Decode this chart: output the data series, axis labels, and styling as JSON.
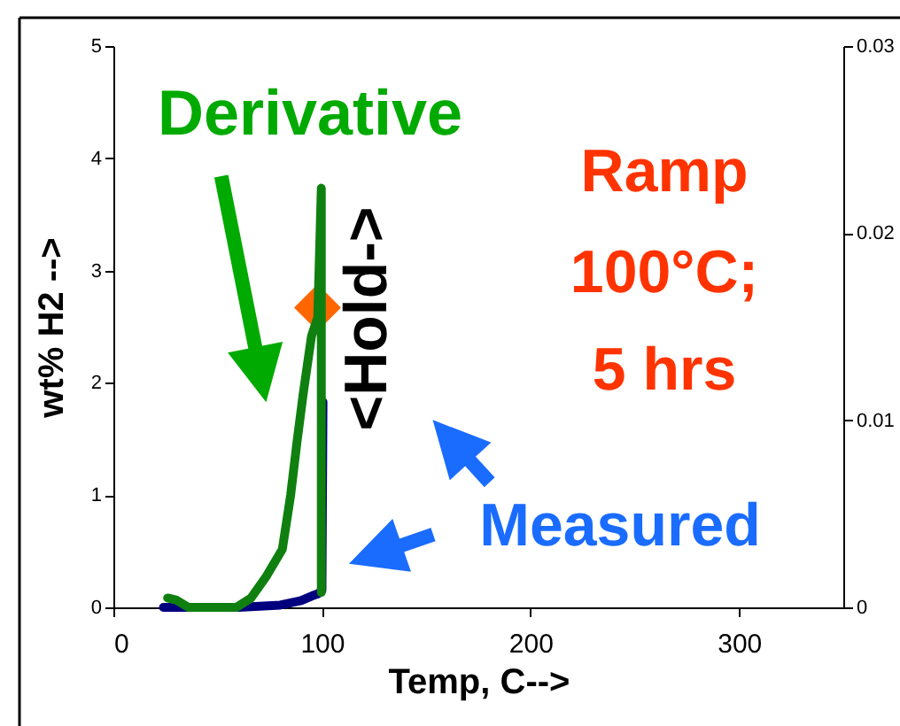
{
  "chart_data": {
    "type": "line",
    "xlabel": "Temp, C-->",
    "ylabel": "wt% H2 -->",
    "xlim": [
      0,
      350
    ],
    "xticks": [
      0,
      100,
      200,
      300
    ],
    "ylim": [
      0,
      5
    ],
    "yticks": [
      0,
      1,
      2,
      3,
      4,
      5
    ],
    "y2lim": [
      0,
      0.03
    ],
    "y2ticks": [
      0,
      0.01,
      0.02,
      0.03
    ],
    "grid": false,
    "line_style": "solid",
    "annotations": [
      "Derivative",
      "Ramp",
      "100°C;",
      "5 hrs",
      "<Hold->",
      "Measured"
    ],
    "series": [
      {
        "color": "#00007f",
        "x": [
          24,
          40,
          50,
          60,
          70,
          80,
          85,
          90,
          95,
          98,
          100,
          100.5
        ],
        "values": [
          0,
          0,
          0,
          0,
          0.01,
          0.02,
          0.04,
          0.06,
          0.1,
          0.12,
          0.15,
          1.83
        ]
      },
      {
        "axis": "y2",
        "color": "#0f800f",
        "x": [
          26,
          30,
          36,
          45,
          59,
          66,
          73,
          81,
          85,
          88,
          91,
          95,
          98,
          99.7,
          99.7
        ],
        "values": [
          0.0005,
          0.0004,
          0,
          0,
          0,
          0.0005,
          0.0016,
          0.0031,
          0.006,
          0.0088,
          0.0114,
          0.0145,
          0.0155,
          0.0224,
          0.0008
        ]
      },
      {
        "type": "scatter",
        "marker": "diamond",
        "color": "#ff6600",
        "x": [
          97.9
        ],
        "values": [
          2.67
        ]
      }
    ]
  }
}
